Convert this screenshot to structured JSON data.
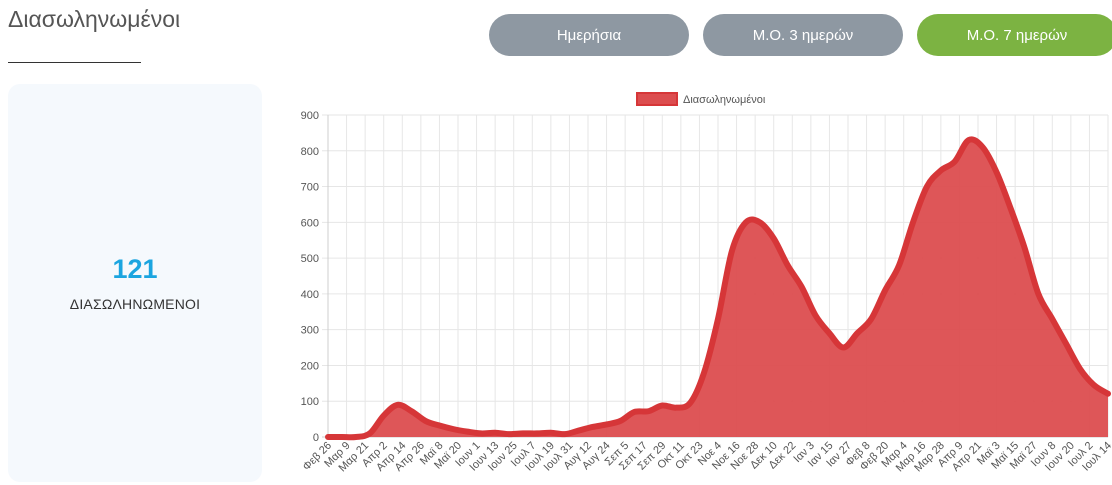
{
  "page": {
    "title": "Διασωληνωμένοι"
  },
  "buttons": [
    {
      "label": "Ημερήσια",
      "color": "#8e98a2"
    },
    {
      "label": "Μ.Ο. 3 ημερών",
      "color": "#8e98a2"
    },
    {
      "label": "Μ.Ο. 7 ημερών",
      "color": "#7cb342",
      "active": true
    }
  ],
  "stat": {
    "value": "121",
    "label": "ΔΙΑΣΩΛΗΝΩΜΕΝΟΙ",
    "value_color": "#1ba5e0"
  },
  "chart_data": {
    "type": "area",
    "title": "",
    "xlabel": "",
    "ylabel": "",
    "legend": {
      "label": "Διασωληνωμένοι",
      "position": "top"
    },
    "ylim": [
      0,
      900
    ],
    "yticks": [
      0,
      100,
      200,
      300,
      400,
      500,
      600,
      700,
      800,
      900
    ],
    "grid": true,
    "fill_color": "#dc4d4f",
    "line_color": "#d63638",
    "x_tick_labels": [
      "Φεβ 26",
      "Μαρ 9",
      "Μαρ 21",
      "Απρ 2",
      "Απρ 14",
      "Απρ 26",
      "Μαϊ 8",
      "Μαϊ 20",
      "Ιουν 1",
      "Ιουν 13",
      "Ιουν 25",
      "Ιουλ 7",
      "Ιουλ 19",
      "Ιουλ 31",
      "Αυγ 12",
      "Αυγ 24",
      "Σεπ 5",
      "Σεπ 17",
      "Σεπ 29",
      "Οκτ 11",
      "Οκτ 23",
      "Νοε 4",
      "Νοε 16",
      "Νοε 28",
      "Δεκ 10",
      "Δεκ 22",
      "Ιαν 3",
      "Ιαν 15",
      "Ιαν 27",
      "Φεβ 8",
      "Φεβ 20",
      "Μαρ 4",
      "Μαρ 16",
      "Μαρ 28",
      "Απρ 9",
      "Απρ 21",
      "Μαϊ 3",
      "Μαϊ 15",
      "Μαϊ 27",
      "Ιουν 8",
      "Ιουν 20",
      "Ιουλ 2",
      "Ιουλ 14"
    ],
    "series": [
      {
        "name": "Διασωληνωμένοι",
        "values": [
          0,
          0,
          0,
          10,
          60,
          90,
          72,
          45,
          32,
          22,
          15,
          10,
          12,
          8,
          10,
          10,
          12,
          8,
          18,
          28,
          35,
          45,
          70,
          72,
          88,
          82,
          95,
          180,
          330,
          520,
          600,
          600,
          555,
          480,
          420,
          340,
          290,
          250,
          290,
          330,
          410,
          480,
          600,
          700,
          745,
          770,
          830,
          810,
          740,
          640,
          530,
          400,
          330,
          260,
          190,
          145,
          121
        ]
      }
    ]
  }
}
